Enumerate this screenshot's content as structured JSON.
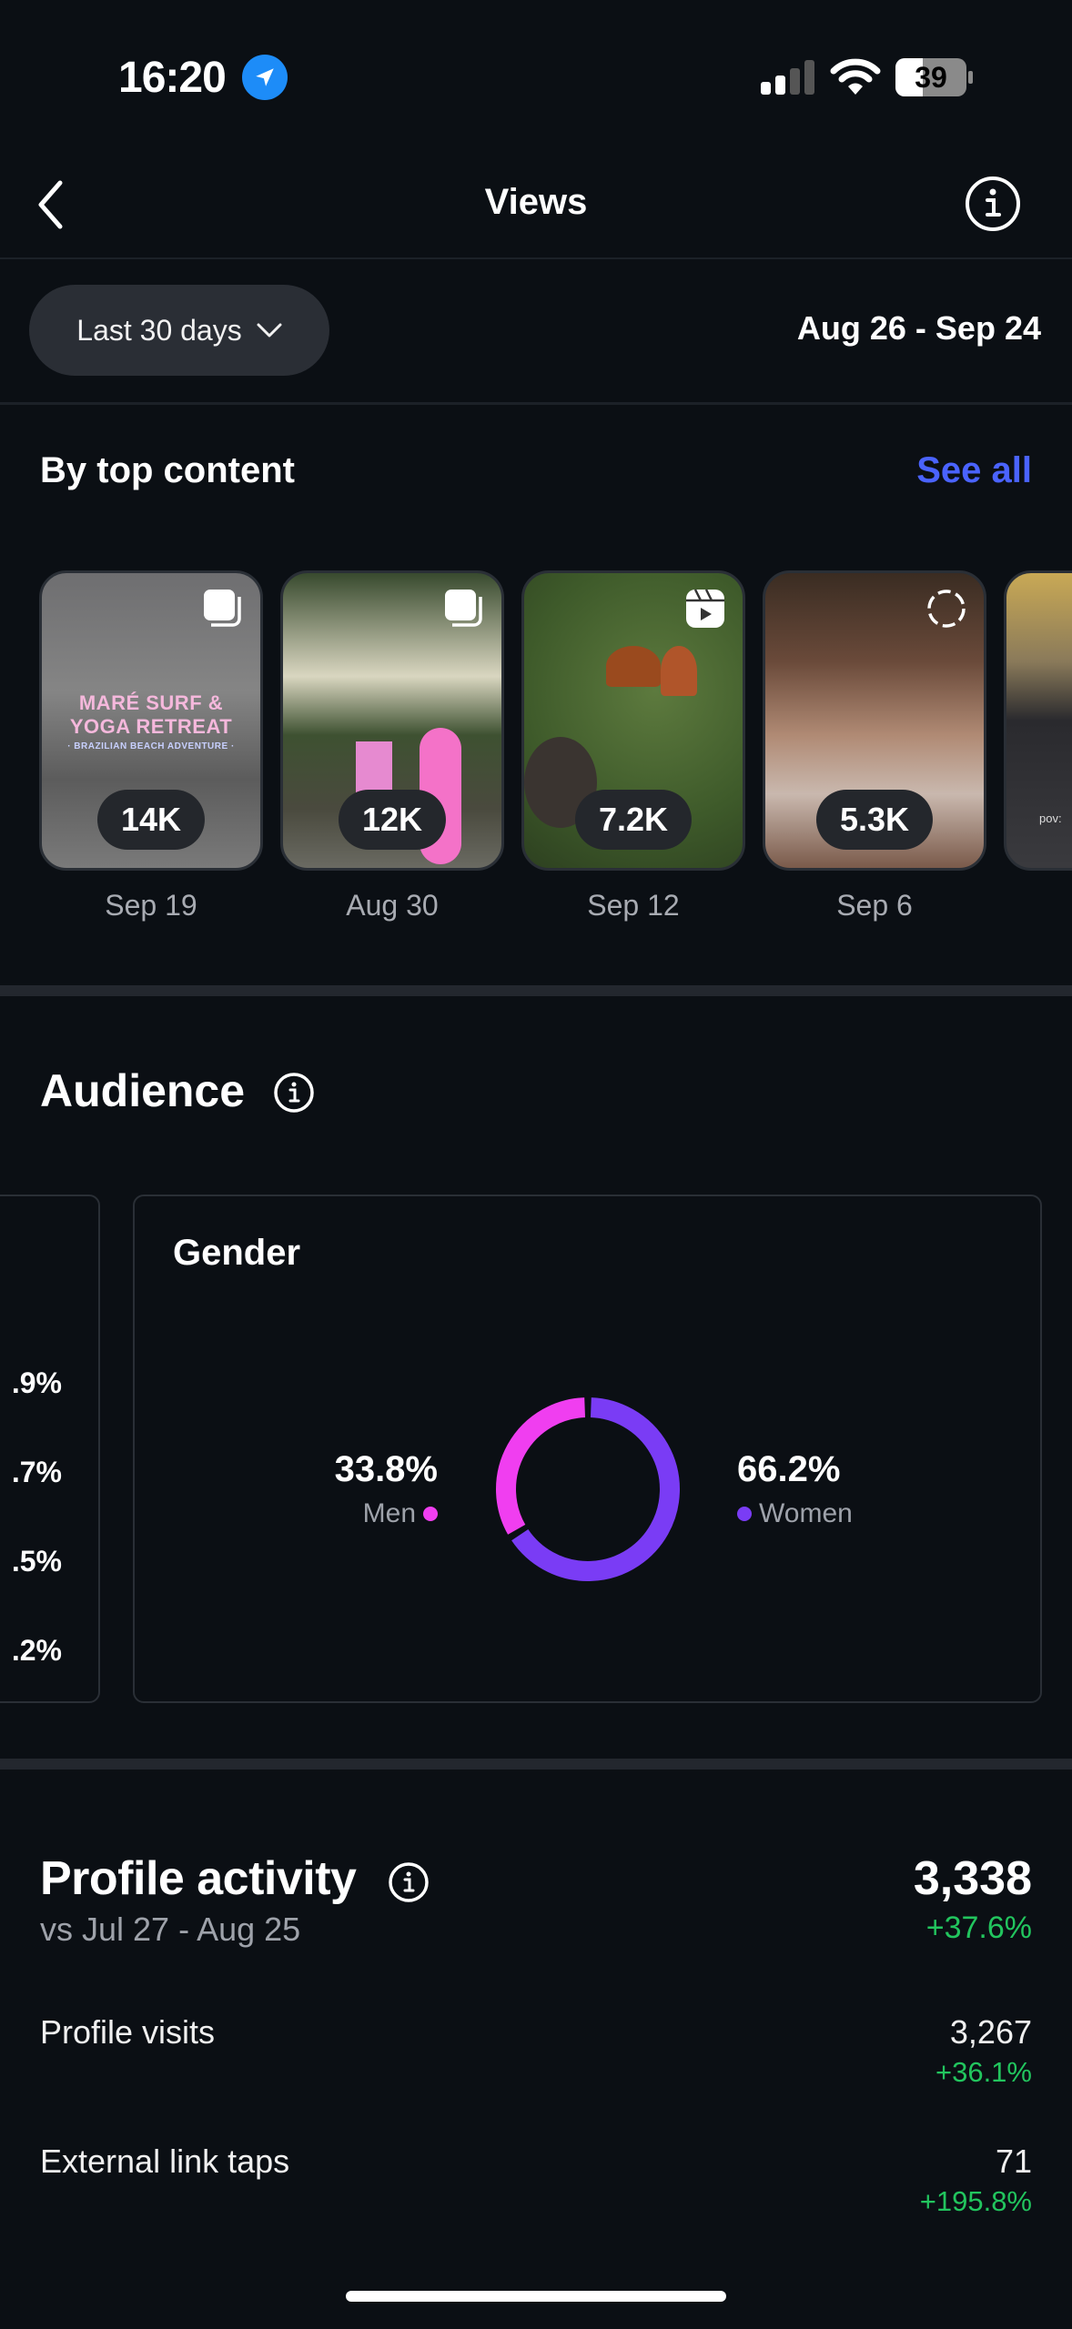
{
  "status_bar": {
    "time": "16:20",
    "battery": "39",
    "icons": [
      "location-arrow-icon",
      "cellular-signal-icon",
      "wifi-icon",
      "battery-icon"
    ]
  },
  "nav": {
    "title": "Views",
    "back_icon": "chevron-left-icon",
    "info_icon": "info-icon"
  },
  "filter": {
    "selected": "Last 30 days",
    "date_range": "Aug 26 - Sep 24"
  },
  "top_content": {
    "title": "By top content",
    "see_all": "See all",
    "items": [
      {
        "views": "14K",
        "date": "Sep 19",
        "type": "carousel",
        "type_icon": "carousel-icon",
        "caption_lines": [
          "MARÉ SURF &",
          "YOGA RETREAT",
          "· BRAZILIAN BEACH ADVENTURE ·"
        ]
      },
      {
        "views": "12K",
        "date": "Aug 30",
        "type": "carousel",
        "type_icon": "carousel-icon"
      },
      {
        "views": "7.2K",
        "date": "Sep 12",
        "type": "reel",
        "type_icon": "reel-icon"
      },
      {
        "views": "5.3K",
        "date": "Sep 6",
        "type": "story",
        "type_icon": "story-dashed-circle-icon"
      },
      {
        "views": "",
        "date": "",
        "type": "partial",
        "overlay_text": "pov:"
      }
    ]
  },
  "audience": {
    "title": "Audience",
    "left_card_values": [
      ".9%",
      ".7%",
      ".5%",
      ".2%"
    ],
    "gender": {
      "title": "Gender",
      "men": {
        "label": "Men",
        "value": "33.8%",
        "color": "#f03ef0"
      },
      "women": {
        "label": "Women",
        "value": "66.2%",
        "color": "#7a3cf5"
      }
    }
  },
  "profile_activity": {
    "title": "Profile activity",
    "comparison": "vs Jul 27 - Aug 25",
    "total": "3,338",
    "total_change": "+37.6%",
    "rows": [
      {
        "label": "Profile visits",
        "value": "3,267",
        "change": "+36.1%"
      },
      {
        "label": "External link taps",
        "value": "71",
        "change": "+195.8%"
      }
    ]
  },
  "colors": {
    "background": "#0b0f14",
    "accent_link": "#4a63ff",
    "positive": "#22c55e",
    "men": "#f03ef0",
    "women": "#7a3cf5"
  },
  "chart_data": {
    "type": "pie",
    "title": "Gender",
    "categories": [
      "Men",
      "Women"
    ],
    "values": [
      33.8,
      66.2
    ],
    "unit": "%",
    "donut": true
  }
}
